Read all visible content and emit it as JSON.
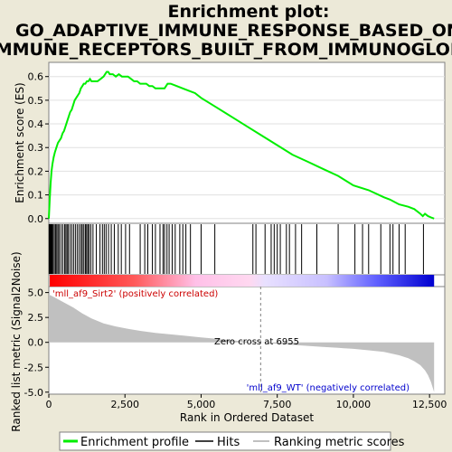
{
  "chart_data": {
    "type": "line",
    "title_lines": [
      "Enrichment plot:",
      "GO_ADAPTIVE_IMMUNE_RESPONSE_BASED_ON_S",
      "IMMUNE_RECEPTORS_BUILT_FROM_IMMUNOGLOB"
    ],
    "xlabel": "Rank in Ordered Dataset",
    "xlim": [
      0,
      13000
    ],
    "x_ticks": [
      0,
      2500,
      5000,
      7500,
      10000,
      12500
    ],
    "x_tick_labels": [
      "0",
      "2,500",
      "5,000",
      "7,500",
      "10,000",
      "12,500"
    ],
    "es_panel": {
      "ylabel": "Enrichment score (ES)",
      "ylim": [
        -0.02,
        0.66
      ],
      "y_ticks": [
        0.0,
        0.1,
        0.2,
        0.3,
        0.4,
        0.5,
        0.6
      ],
      "y_tick_labels": [
        "0.0",
        "0.1",
        "0.2",
        "0.3",
        "0.4",
        "0.5",
        "0.6"
      ],
      "series": [
        {
          "name": "Enrichment profile",
          "color": "#00ee00",
          "x": [
            0,
            30,
            60,
            90,
            120,
            160,
            200,
            250,
            300,
            350,
            400,
            450,
            500,
            550,
            600,
            650,
            700,
            750,
            800,
            850,
            900,
            950,
            1000,
            1050,
            1100,
            1150,
            1200,
            1250,
            1300,
            1350,
            1400,
            1500,
            1600,
            1700,
            1800,
            1850,
            1900,
            1950,
            2000,
            2100,
            2200,
            2300,
            2400,
            2500,
            2600,
            2700,
            2800,
            2900,
            3000,
            3100,
            3200,
            3300,
            3400,
            3500,
            3600,
            3700,
            3800,
            3850,
            3900,
            4000,
            4200,
            4400,
            4600,
            4800,
            5000,
            5500,
            6000,
            6500,
            7000,
            7500,
            8000,
            8500,
            9000,
            9500,
            10000,
            10500,
            11000,
            11200,
            11500,
            11800,
            12000,
            12200,
            12280,
            12350,
            12450,
            12550,
            12650
          ],
          "y": [
            0.0,
            0.08,
            0.15,
            0.2,
            0.23,
            0.26,
            0.28,
            0.3,
            0.32,
            0.33,
            0.34,
            0.36,
            0.37,
            0.39,
            0.41,
            0.43,
            0.45,
            0.46,
            0.48,
            0.5,
            0.51,
            0.52,
            0.53,
            0.55,
            0.56,
            0.57,
            0.57,
            0.58,
            0.58,
            0.59,
            0.58,
            0.58,
            0.58,
            0.59,
            0.6,
            0.61,
            0.62,
            0.62,
            0.61,
            0.61,
            0.6,
            0.61,
            0.6,
            0.6,
            0.6,
            0.59,
            0.58,
            0.58,
            0.57,
            0.57,
            0.57,
            0.56,
            0.56,
            0.55,
            0.55,
            0.55,
            0.55,
            0.56,
            0.57,
            0.57,
            0.56,
            0.55,
            0.54,
            0.53,
            0.51,
            0.47,
            0.43,
            0.39,
            0.35,
            0.31,
            0.27,
            0.24,
            0.21,
            0.18,
            0.14,
            0.12,
            0.09,
            0.08,
            0.06,
            0.05,
            0.04,
            0.02,
            0.01,
            0.02,
            0.01,
            0.005,
            0.0
          ]
        }
      ]
    },
    "hits": {
      "name": "Hits",
      "color": "#000000",
      "x": [
        10,
        30,
        50,
        70,
        90,
        110,
        140,
        180,
        220,
        260,
        300,
        340,
        400,
        460,
        520,
        560,
        600,
        640,
        700,
        760,
        820,
        880,
        940,
        1000,
        1060,
        1100,
        1150,
        1200,
        1240,
        1280,
        1320,
        1380,
        1450,
        1560,
        1680,
        1760,
        1820,
        1880,
        1960,
        2050,
        2150,
        2280,
        2380,
        2520,
        2650,
        3000,
        3150,
        3250,
        3400,
        3500,
        3650,
        3750,
        3800,
        3880,
        3950,
        4050,
        4150,
        4300,
        4400,
        4500,
        4650,
        5000,
        5450,
        6700,
        6800,
        7100,
        7300,
        7400,
        7500,
        7600,
        7800,
        7900,
        8100,
        8300,
        8800,
        9500,
        10050,
        10300,
        10500,
        10900,
        11200,
        11300,
        11500,
        11700,
        12300
      ]
    },
    "rank_bar": {
      "zero_cross": 6955,
      "left_color": "#ff0000",
      "right_color": "#0000ff"
    },
    "metric_panel": {
      "ylabel": "Ranked list metric (Signal2Noise)",
      "ylim": [
        -5.2,
        5.6
      ],
      "y_ticks": [
        5.0,
        2.5,
        0.0,
        -2.5,
        -5.0
      ],
      "y_tick_labels": [
        "5.0",
        "2.5",
        "0.0",
        "-2.5",
        "-5.0"
      ],
      "fill_color": "#c0c0c0",
      "x": [
        0,
        200,
        500,
        800,
        1100,
        1400,
        1800,
        2200,
        2600,
        3000,
        3500,
        4000,
        4500,
        5000,
        5500,
        6000,
        6955,
        7500,
        8000,
        8500,
        9000,
        9500,
        10000,
        10500,
        11000,
        11500,
        11800,
        12000,
        12200,
        12350,
        12450,
        12550,
        12600,
        12650
      ],
      "y": [
        4.8,
        4.5,
        4.0,
        3.5,
        2.9,
        2.4,
        1.9,
        1.6,
        1.35,
        1.15,
        0.95,
        0.8,
        0.65,
        0.5,
        0.35,
        0.2,
        0.0,
        -0.15,
        -0.25,
        -0.35,
        -0.45,
        -0.55,
        -0.65,
        -0.8,
        -0.95,
        -1.3,
        -1.6,
        -1.9,
        -2.3,
        -2.8,
        -3.3,
        -4.0,
        -4.5,
        -5.0
      ],
      "pos_label": "'mll_af9_Sirt2' (positively correlated)",
      "neg_label": "'mll_af9_WT' (negatively correlated)",
      "zero_cross_label": "Zero cross at 6955"
    },
    "legend": {
      "placement": "bottom",
      "entries": [
        {
          "label": "Enrichment profile",
          "color": "#00ee00"
        },
        {
          "label": "Hits",
          "color": "#000000"
        },
        {
          "label": "Ranking metric scores",
          "color": "#c0c0c0"
        }
      ]
    }
  }
}
